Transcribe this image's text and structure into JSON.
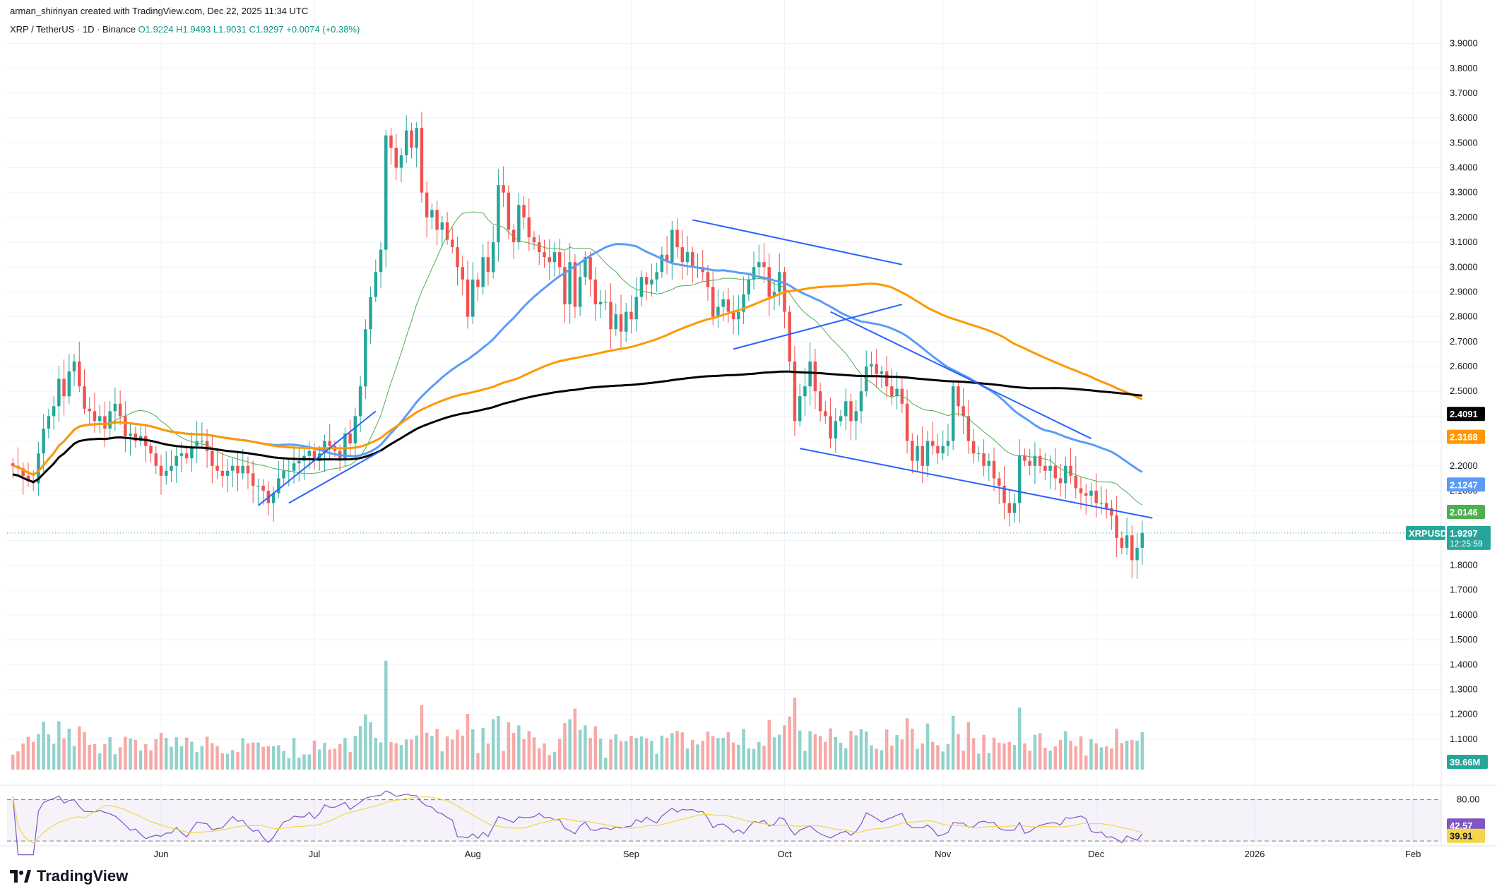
{
  "header": {
    "attribution": "arman_shirinyan created with TradingView.com, Dec 22, 2025 11:34 UTC",
    "symbol": "XRP / TetherUS · 1D · Binance",
    "ohlc": "O1.9224 H1.9493 L1.9031 C1.9297 +0.0074 (+0.38%)"
  },
  "brand": {
    "name": "TradingView",
    "icon": "tradingview-logo-icon"
  },
  "colors": {
    "up": "#26a69a",
    "down": "#ef5350",
    "ma_green": "#4caf50",
    "ma_blue": "#5b9cf6",
    "ma_orange": "#ff9800",
    "ma_black": "#000000",
    "trendline": "#2962ff",
    "rsi": "#7e57c2",
    "rsi_ma": "#f5d54a"
  },
  "chart_data": {
    "type": "candlestick",
    "price_axis": {
      "ylim": [
        1.0,
        3.95
      ],
      "ticks": [
        "3.9000",
        "3.8000",
        "3.7000",
        "3.6000",
        "3.5000",
        "3.4000",
        "3.3000",
        "3.2000",
        "3.1000",
        "3.0000",
        "2.9000",
        "2.8000",
        "2.7000",
        "2.6000",
        "2.5000",
        "2.4000",
        "2.3000",
        "2.2000",
        "2.1000",
        "2.0000",
        "1.9000",
        "1.8000",
        "1.7000",
        "1.6000",
        "1.5000",
        "1.4000",
        "1.3000",
        "1.2000",
        "1.1000"
      ]
    },
    "time_axis": {
      "ticks": [
        {
          "label": "Jun",
          "date": "2025-06-01"
        },
        {
          "label": "Jul",
          "date": "2025-07-01"
        },
        {
          "label": "Aug",
          "date": "2025-08-01"
        },
        {
          "label": "Sep",
          "date": "2025-09-01"
        },
        {
          "label": "Oct",
          "date": "2025-10-01"
        },
        {
          "label": "Nov",
          "date": "2025-11-01"
        },
        {
          "label": "Dec",
          "date": "2025-12-01"
        },
        {
          "label": "2026",
          "date": "2026-01-01"
        },
        {
          "label": "Feb",
          "date": "2026-02-01"
        }
      ]
    },
    "candles": {
      "start_date": "2025-05-03",
      "closes": [
        2.2,
        2.19,
        2.16,
        2.14,
        2.13,
        2.25,
        2.35,
        2.4,
        2.44,
        2.55,
        2.48,
        2.58,
        2.62,
        2.52,
        2.43,
        2.42,
        2.38,
        2.4,
        2.35,
        2.42,
        2.45,
        2.4,
        2.32,
        2.33,
        2.3,
        2.32,
        2.28,
        2.25,
        2.2,
        2.16,
        2.18,
        2.2,
        2.24,
        2.25,
        2.23,
        2.28,
        2.3,
        2.3,
        2.26,
        2.2,
        2.18,
        2.16,
        2.18,
        2.2,
        2.17,
        2.2,
        2.17,
        2.12,
        2.12,
        2.1,
        2.05,
        2.09,
        2.15,
        2.18,
        2.18,
        2.21,
        2.22,
        2.24,
        2.26,
        2.22,
        2.25,
        2.3,
        2.28,
        2.26,
        2.23,
        2.33,
        2.29,
        2.4,
        2.52,
        2.75,
        2.88,
        2.98,
        3.07,
        3.53,
        3.48,
        3.4,
        3.45,
        3.55,
        3.48,
        3.56,
        3.3,
        3.2,
        3.23,
        3.15,
        3.18,
        3.11,
        3.08,
        3.0,
        2.95,
        2.8,
        2.95,
        2.92,
        3.04,
        2.98,
        3.1,
        3.33,
        3.3,
        3.15,
        3.1,
        3.25,
        3.2,
        3.12,
        3.1,
        3.06,
        3.04,
        3.02,
        3.06,
        3.0,
        2.85,
        3.02,
        2.84,
        2.96,
        3.04,
        2.95,
        2.85,
        2.86,
        2.86,
        2.75,
        2.81,
        2.74,
        2.82,
        2.79,
        2.88,
        2.96,
        2.93,
        2.95,
        2.98,
        3.05,
        3.02,
        3.15,
        3.08,
        3.02,
        3.06,
        3.0,
        3.0,
        2.98,
        2.92,
        2.8,
        2.84,
        2.87,
        2.82,
        2.79,
        2.82,
        2.89,
        2.95,
        3.0,
        3.02,
        3.0,
        2.88,
        2.9,
        2.98,
        2.82,
        2.62,
        2.38,
        2.48,
        2.52,
        2.62,
        2.5,
        2.42,
        2.4,
        2.31,
        2.38,
        2.4,
        2.46,
        2.38,
        2.42,
        2.5,
        2.6,
        2.61,
        2.57,
        2.58,
        2.52,
        2.48,
        2.51,
        2.45,
        2.3,
        2.22,
        2.28,
        2.2,
        2.3,
        2.28,
        2.25,
        2.28,
        2.3,
        2.52,
        2.44,
        2.4,
        2.3,
        2.25,
        2.25,
        2.2,
        2.22,
        2.15,
        2.12,
        2.05,
        2.01,
        2.05,
        2.24,
        2.22,
        2.2,
        2.24,
        2.2,
        2.18,
        2.2,
        2.15,
        2.13,
        2.2,
        2.16,
        2.11,
        2.09,
        2.08,
        2.1,
        2.05,
        2.05,
        2.03,
        2.0,
        1.91,
        1.87,
        1.92,
        1.82,
        1.87,
        1.93
      ],
      "last_close": 1.9297
    },
    "moving_averages": [
      {
        "color": "green"
      },
      {
        "color": "blue"
      },
      {
        "color": "orange"
      },
      {
        "color": "black"
      }
    ],
    "trendlines": [
      {
        "from": [
          "2025-06-20",
          2.04
        ],
        "to": [
          "2025-07-13",
          2.42
        ]
      },
      {
        "from": [
          "2025-06-26",
          2.05
        ],
        "to": [
          "2025-07-14",
          2.26
        ]
      },
      {
        "from": [
          "2025-09-13",
          3.19
        ],
        "to": [
          "2025-10-24",
          3.01
        ]
      },
      {
        "from": [
          "2025-09-21",
          2.67
        ],
        "to": [
          "2025-10-24",
          2.85
        ]
      },
      {
        "from": [
          "2025-10-10",
          2.82
        ],
        "to": [
          "2025-11-30",
          2.31
        ]
      },
      {
        "from": [
          "2025-10-04",
          2.27
        ],
        "to": [
          "2025-12-12",
          1.99
        ]
      }
    ],
    "price_labels": [
      {
        "text": "2.4091",
        "price": 2.4091,
        "color": "black"
      },
      {
        "text": "2.3168",
        "price": 2.3168,
        "color": "orange"
      },
      {
        "text": "2.1247",
        "price": 2.1247,
        "color": "blue"
      },
      {
        "text": "2.0146",
        "price": 2.0146,
        "color": "green"
      }
    ],
    "last_price_label": {
      "symbol": "XRPUSDT",
      "price": "1.9297",
      "countdown": "12:25:59"
    },
    "volume": {
      "last_label": "39.66M"
    },
    "rsi": {
      "levels": [
        80.0,
        20.0
      ],
      "level_labels": [
        "80.00"
      ],
      "value_label": "42.57",
      "ma_label": "39.91",
      "ylim": [
        15,
        95
      ]
    }
  }
}
